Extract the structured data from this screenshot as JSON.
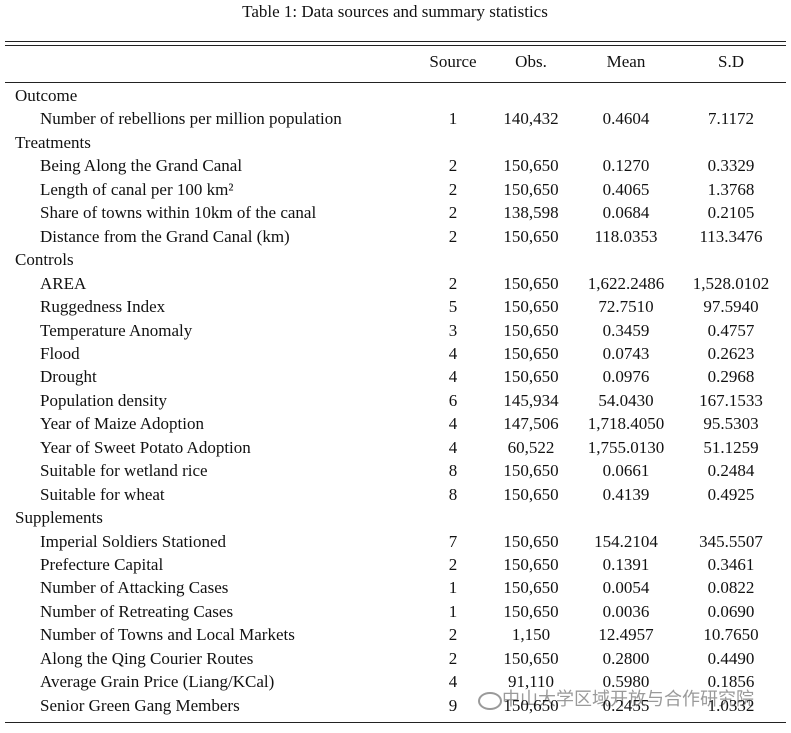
{
  "title": "Table 1: Data sources and summary statistics",
  "columns": [
    "Source",
    "Obs.",
    "Mean",
    "S.D"
  ],
  "sections": [
    {
      "title": "Outcome",
      "rows": [
        {
          "label": "Number of rebellions per million population",
          "source": "1",
          "obs": "140,432",
          "mean": "0.4604",
          "sd": "7.1172"
        }
      ]
    },
    {
      "title": "Treatments",
      "rows": [
        {
          "label": "Being Along the Grand Canal",
          "source": "2",
          "obs": "150,650",
          "mean": "0.1270",
          "sd": "0.3329"
        },
        {
          "label": "Length of canal per 100 km²",
          "source": "2",
          "obs": "150,650",
          "mean": "0.4065",
          "sd": "1.3768"
        },
        {
          "label": "Share of towns within 10km of the canal",
          "source": "2",
          "obs": "138,598",
          "mean": "0.0684",
          "sd": "0.2105"
        },
        {
          "label": "Distance from the Grand Canal (km)",
          "source": "2",
          "obs": "150,650",
          "mean": "118.0353",
          "sd": "113.3476"
        }
      ]
    },
    {
      "title": "Controls",
      "rows": [
        {
          "label": "AREA",
          "source": "2",
          "obs": "150,650",
          "mean": "1,622.2486",
          "sd": "1,528.0102"
        },
        {
          "label": "Ruggedness Index",
          "source": "5",
          "obs": "150,650",
          "mean": "72.7510",
          "sd": "97.5940"
        },
        {
          "label": "Temperature Anomaly",
          "source": "3",
          "obs": "150,650",
          "mean": "0.3459",
          "sd": "0.4757"
        },
        {
          "label": "Flood",
          "source": "4",
          "obs": "150,650",
          "mean": "0.0743",
          "sd": "0.2623"
        },
        {
          "label": "Drought",
          "source": "4",
          "obs": "150,650",
          "mean": "0.0976",
          "sd": "0.2968"
        },
        {
          "label": "Population density",
          "source": "6",
          "obs": "145,934",
          "mean": "54.0430",
          "sd": "167.1533"
        },
        {
          "label": "Year of Maize Adoption",
          "source": "4",
          "obs": "147,506",
          "mean": "1,718.4050",
          "sd": "95.5303"
        },
        {
          "label": "Year of Sweet Potato Adoption",
          "source": "4",
          "obs": "60,522",
          "mean": "1,755.0130",
          "sd": "51.1259"
        },
        {
          "label": "Suitable for wetland rice",
          "source": "8",
          "obs": "150,650",
          "mean": "0.0661",
          "sd": "0.2484"
        },
        {
          "label": "Suitable for wheat",
          "source": "8",
          "obs": "150,650",
          "mean": "0.4139",
          "sd": "0.4925"
        }
      ]
    },
    {
      "title": "Supplements",
      "rows": [
        {
          "label": "Imperial Soldiers Stationed",
          "source": "7",
          "obs": "150,650",
          "mean": "154.2104",
          "sd": "345.5507"
        },
        {
          "label": "Prefecture Capital",
          "source": "2",
          "obs": "150,650",
          "mean": "0.1391",
          "sd": "0.3461"
        },
        {
          "label": "Number of Attacking Cases",
          "source": "1",
          "obs": "150,650",
          "mean": "0.0054",
          "sd": "0.0822"
        },
        {
          "label": "Number of Retreating Cases",
          "source": "1",
          "obs": "150,650",
          "mean": "0.0036",
          "sd": "0.0690"
        },
        {
          "label": "Number of Towns and Local Markets",
          "source": "2",
          "obs": "1,150",
          "mean": "12.4957",
          "sd": "10.7650"
        },
        {
          "label": "Along the Qing Courier Routes",
          "source": "2",
          "obs": "150,650",
          "mean": "0.2800",
          "sd": "0.4490"
        },
        {
          "label": "Average Grain Price (Liang/KCal)",
          "source": "4",
          "obs": "91,110",
          "mean": "0.5980",
          "sd": "0.1856"
        },
        {
          "label": "Senior Green Gang Members",
          "source": "9",
          "obs": "150,650",
          "mean": "0.2455",
          "sd": "1.0332"
        }
      ]
    }
  ],
  "watermark": "中山大学区域开放与合作研究院"
}
